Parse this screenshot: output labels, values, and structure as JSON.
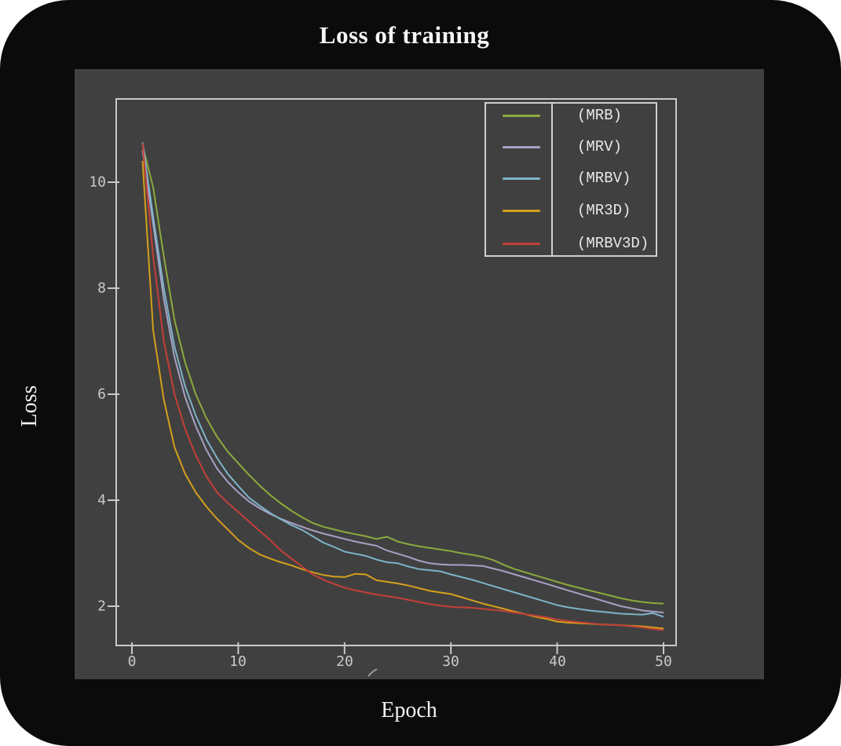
{
  "chart_data": {
    "type": "line",
    "title": "Loss of training",
    "xlabel": "Epoch",
    "ylabel": "Loss",
    "x_ticks": [
      0,
      10,
      20,
      30,
      40,
      50
    ],
    "y_ticks": [
      2,
      4,
      6,
      8,
      10
    ],
    "xlim": [
      -1.5,
      51.2
    ],
    "ylim": [
      1.25,
      11.55
    ],
    "grid": false,
    "legend_position": "upper right",
    "background_color": "#404040",
    "axis_color": "#c9c9c9",
    "x": [
      1,
      2,
      3,
      4,
      5,
      6,
      7,
      8,
      9,
      10,
      11,
      12,
      13,
      14,
      15,
      16,
      17,
      18,
      19,
      20,
      21,
      22,
      23,
      24,
      25,
      26,
      27,
      28,
      29,
      30,
      31,
      32,
      33,
      34,
      35,
      36,
      37,
      38,
      39,
      40,
      41,
      42,
      43,
      44,
      45,
      46,
      47,
      48,
      49,
      50
    ],
    "series": [
      {
        "name": "(MRB)",
        "color": "#8caa3e",
        "values": [
          10.7,
          9.9,
          8.6,
          7.4,
          6.6,
          6.0,
          5.55,
          5.2,
          4.92,
          4.7,
          4.48,
          4.28,
          4.1,
          3.94,
          3.8,
          3.68,
          3.57,
          3.5,
          3.45,
          3.4,
          3.36,
          3.32,
          3.27,
          3.31,
          3.22,
          3.17,
          3.13,
          3.1,
          3.07,
          3.04,
          3.0,
          2.97,
          2.93,
          2.87,
          2.78,
          2.7,
          2.64,
          2.58,
          2.52,
          2.46,
          2.4,
          2.35,
          2.3,
          2.25,
          2.2,
          2.15,
          2.11,
          2.08,
          2.06,
          2.05
        ]
      },
      {
        "name": "(MRV)",
        "color": "#a8a1c4",
        "values": [
          10.6,
          9.2,
          7.8,
          6.7,
          5.95,
          5.4,
          4.95,
          4.6,
          4.35,
          4.15,
          3.98,
          3.85,
          3.74,
          3.65,
          3.57,
          3.5,
          3.43,
          3.37,
          3.32,
          3.27,
          3.22,
          3.18,
          3.14,
          3.05,
          2.99,
          2.93,
          2.86,
          2.81,
          2.79,
          2.78,
          2.78,
          2.77,
          2.76,
          2.71,
          2.66,
          2.6,
          2.54,
          2.48,
          2.42,
          2.36,
          2.3,
          2.24,
          2.18,
          2.12,
          2.06,
          2.0,
          1.96,
          1.92,
          1.9,
          1.88
        ]
      },
      {
        "name": "(MRBV)",
        "color": "#7db3c7",
        "values": [
          10.75,
          9.35,
          8.0,
          6.9,
          6.15,
          5.6,
          5.15,
          4.8,
          4.5,
          4.27,
          4.05,
          3.9,
          3.76,
          3.64,
          3.53,
          3.44,
          3.32,
          3.2,
          3.12,
          3.03,
          2.99,
          2.95,
          2.88,
          2.83,
          2.81,
          2.75,
          2.7,
          2.68,
          2.66,
          2.6,
          2.55,
          2.5,
          2.44,
          2.38,
          2.32,
          2.26,
          2.2,
          2.14,
          2.08,
          2.02,
          1.98,
          1.95,
          1.92,
          1.9,
          1.88,
          1.86,
          1.85,
          1.84,
          1.87,
          1.8
        ]
      },
      {
        "name": "(MR3D)",
        "color": "#d4a01c",
        "values": [
          10.4,
          7.2,
          5.9,
          5.0,
          4.5,
          4.15,
          3.88,
          3.65,
          3.45,
          3.25,
          3.1,
          2.98,
          2.9,
          2.83,
          2.77,
          2.7,
          2.64,
          2.59,
          2.56,
          2.55,
          2.61,
          2.6,
          2.49,
          2.46,
          2.43,
          2.39,
          2.34,
          2.29,
          2.26,
          2.23,
          2.17,
          2.11,
          2.05,
          2.0,
          1.95,
          1.9,
          1.85,
          1.8,
          1.76,
          1.71,
          1.69,
          1.68,
          1.67,
          1.66,
          1.65,
          1.64,
          1.63,
          1.62,
          1.6,
          1.58
        ]
      },
      {
        "name": "(MRBV3D)",
        "color": "#c43f38",
        "values": [
          10.73,
          8.6,
          7.0,
          6.0,
          5.35,
          4.85,
          4.45,
          4.15,
          3.95,
          3.78,
          3.6,
          3.42,
          3.25,
          3.05,
          2.9,
          2.75,
          2.6,
          2.5,
          2.42,
          2.35,
          2.3,
          2.26,
          2.22,
          2.19,
          2.16,
          2.12,
          2.08,
          2.04,
          2.01,
          1.99,
          1.98,
          1.97,
          1.95,
          1.93,
          1.91,
          1.88,
          1.85,
          1.82,
          1.79,
          1.75,
          1.72,
          1.7,
          1.68,
          1.66,
          1.65,
          1.64,
          1.62,
          1.6,
          1.57,
          1.55
        ]
      }
    ]
  }
}
